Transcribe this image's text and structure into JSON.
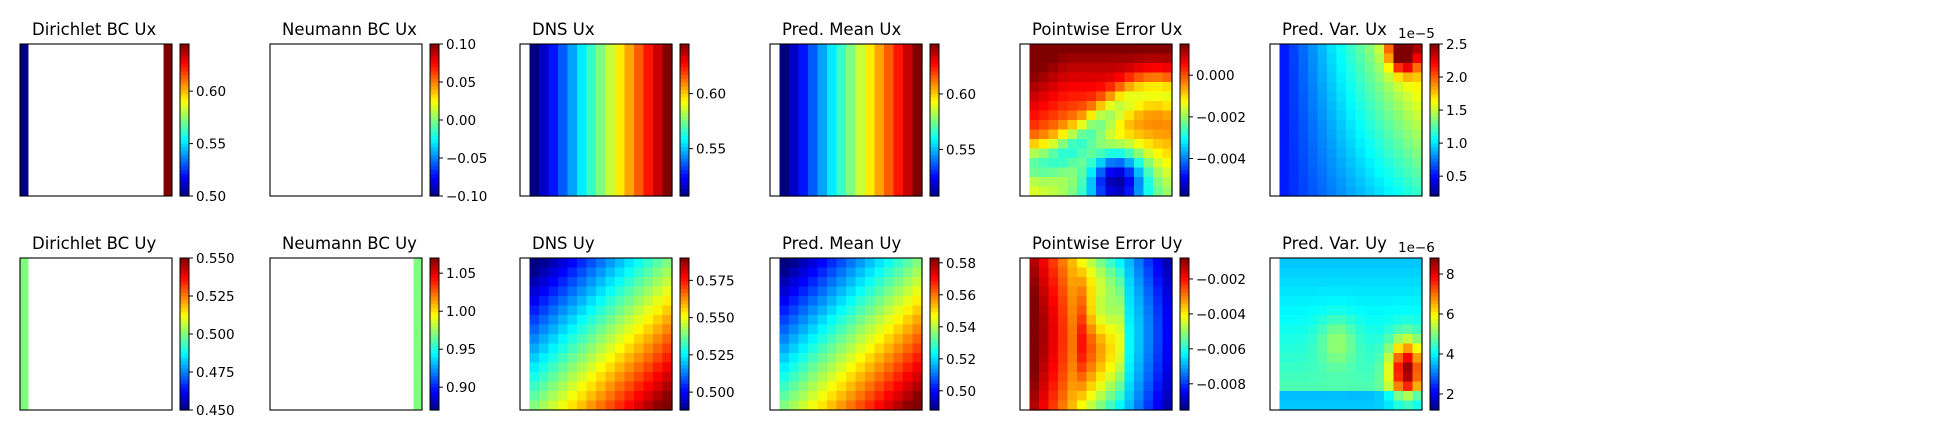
{
  "chart_data": [
    {
      "id": "dir-ux",
      "type": "heatmap",
      "title": "Dirichlet BC Ux",
      "pattern": "left-right-strips",
      "left_value": 0.5,
      "right_value": 0.645,
      "interior": "empty",
      "colorbar": {
        "min": 0.5,
        "max": 0.645,
        "ticks": [
          0.5,
          0.55,
          0.6
        ],
        "tick_labels": [
          "0.50",
          "0.55",
          "0.60"
        ]
      }
    },
    {
      "id": "neu-ux",
      "type": "heatmap",
      "title": "Neumann BC Ux",
      "pattern": "empty",
      "colorbar": {
        "min": -0.1,
        "max": 0.1,
        "ticks": [
          -0.1,
          -0.05,
          0.0,
          0.05,
          0.1
        ],
        "tick_labels": [
          "−0.10",
          "−0.05",
          "0.00",
          "0.05",
          "0.10"
        ]
      }
    },
    {
      "id": "dns-ux",
      "type": "heatmap",
      "title": "DNS Ux",
      "pattern": "x-gradient",
      "min": 0.5,
      "max": 0.645,
      "left_gap": true,
      "colorbar": {
        "min": 0.507,
        "max": 0.645,
        "ticks": [
          0.55,
          0.6
        ],
        "tick_labels": [
          "0.55",
          "0.60"
        ]
      }
    },
    {
      "id": "mean-ux",
      "type": "heatmap",
      "title": "Pred. Mean Ux",
      "pattern": "x-gradient",
      "min": 0.5,
      "max": 0.645,
      "left_gap": true,
      "colorbar": {
        "min": 0.508,
        "max": 0.645,
        "ticks": [
          0.55,
          0.6
        ],
        "tick_labels": [
          "0.55",
          "0.60"
        ]
      }
    },
    {
      "id": "err-ux",
      "type": "heatmap",
      "title": "Pointwise Error Ux",
      "pattern": "error-ux",
      "min": -0.0058,
      "max": 0.0015,
      "left_gap": true,
      "colorbar": {
        "min": -0.0058,
        "max": 0.0015,
        "ticks": [
          -0.004,
          -0.002,
          0.0
        ],
        "tick_labels": [
          "−0.004",
          "−0.002",
          "0.000"
        ]
      }
    },
    {
      "id": "var-ux",
      "type": "heatmap",
      "title": "Pred. Var. Ux",
      "pattern": "var-ux",
      "min": 2e-06,
      "max": 2.5e-05,
      "left_gap": true,
      "colorbar": {
        "min": 0.2,
        "max": 2.5,
        "ticks": [
          0.5,
          1.0,
          1.5,
          2.0,
          2.5
        ],
        "tick_labels": [
          "0.5",
          "1.0",
          "1.5",
          "2.0",
          "2.5"
        ],
        "multiplier": "1e−5"
      }
    },
    {
      "id": "dir-uy",
      "type": "heatmap",
      "title": "Dirichlet BC Uy",
      "pattern": "left-strip",
      "left_value": 0.5,
      "interior": "empty",
      "colorbar": {
        "min": 0.45,
        "max": 0.55,
        "ticks": [
          0.45,
          0.475,
          0.5,
          0.525,
          0.55
        ],
        "tick_labels": [
          "0.450",
          "0.475",
          "0.500",
          "0.525",
          "0.550"
        ]
      }
    },
    {
      "id": "neu-uy",
      "type": "heatmap",
      "title": "Neumann BC Uy",
      "pattern": "right-strip",
      "right_value": 0.97,
      "interior": "empty",
      "colorbar": {
        "min": 0.87,
        "max": 1.07,
        "ticks": [
          0.9,
          0.95,
          1.0,
          1.05
        ],
        "tick_labels": [
          "0.90",
          "0.95",
          "1.00",
          "1.05"
        ]
      }
    },
    {
      "id": "dns-uy",
      "type": "heatmap",
      "title": "DNS Uy",
      "pattern": "diag-gradient",
      "min": 0.488,
      "max": 0.59,
      "left_gap": true,
      "colorbar": {
        "min": 0.488,
        "max": 0.59,
        "ticks": [
          0.5,
          0.525,
          0.55,
          0.575
        ],
        "tick_labels": [
          "0.500",
          "0.525",
          "0.550",
          "0.575"
        ]
      }
    },
    {
      "id": "mean-uy",
      "type": "heatmap",
      "title": "Pred. Mean Uy",
      "pattern": "diag-gradient",
      "min": 0.488,
      "max": 0.583,
      "left_gap": true,
      "colorbar": {
        "min": 0.488,
        "max": 0.583,
        "ticks": [
          0.5,
          0.52,
          0.54,
          0.56,
          0.58
        ],
        "tick_labels": [
          "0.50",
          "0.52",
          "0.54",
          "0.56",
          "0.58"
        ]
      }
    },
    {
      "id": "err-uy",
      "type": "heatmap",
      "title": "Pointwise Error Uy",
      "pattern": "error-uy",
      "min": -0.0095,
      "max": -0.0008,
      "left_gap": true,
      "colorbar": {
        "min": -0.0095,
        "max": -0.0008,
        "ticks": [
          -0.008,
          -0.006,
          -0.004,
          -0.002
        ],
        "tick_labels": [
          "−0.008",
          "−0.006",
          "−0.004",
          "−0.002"
        ]
      }
    },
    {
      "id": "var-uy",
      "type": "heatmap",
      "title": "Pred. Var. Uy",
      "pattern": "var-uy",
      "min": 1.2e-06,
      "max": 8.8e-06,
      "left_gap": true,
      "colorbar": {
        "min": 1.2,
        "max": 8.8,
        "ticks": [
          2,
          4,
          6,
          8
        ],
        "tick_labels": [
          "2",
          "4",
          "6",
          "8"
        ],
        "multiplier": "1e−6"
      }
    }
  ]
}
